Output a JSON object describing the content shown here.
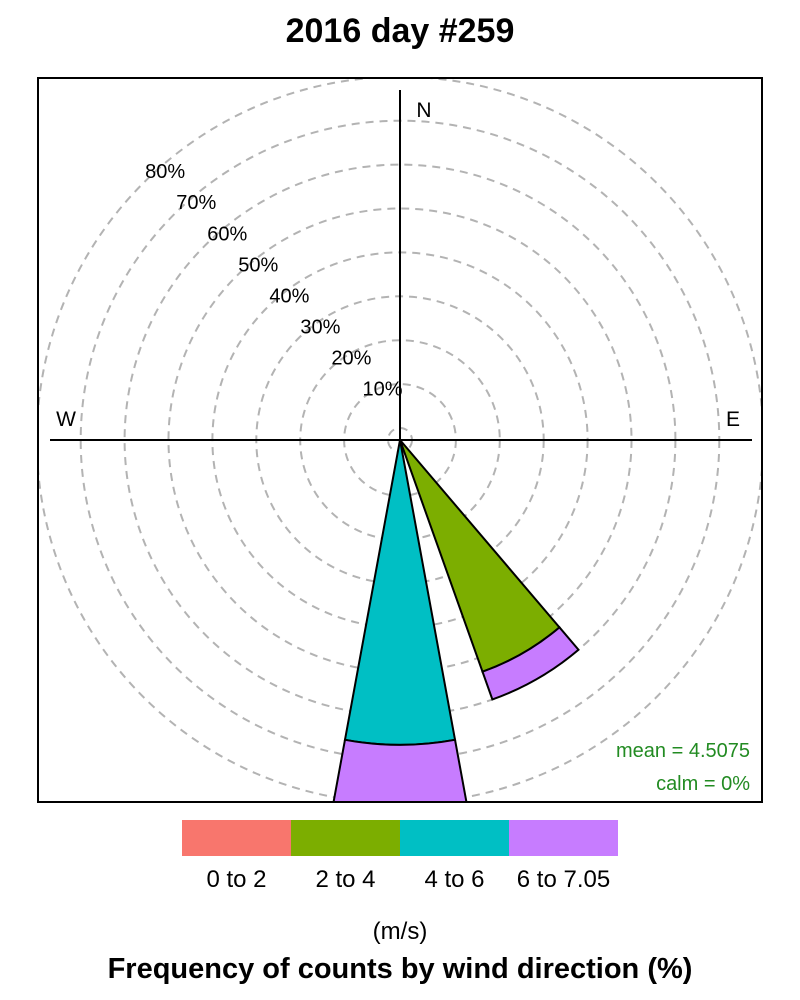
{
  "title": "2016 day #259",
  "directions": {
    "north": "N",
    "east": "E",
    "west": "W"
  },
  "chart_data": {
    "type": "windrose",
    "title": "2016 day #259",
    "rings": [
      "10%",
      "20%",
      "30%",
      "40%",
      "50%",
      "60%",
      "70%",
      "80%"
    ],
    "ring_max_percent": 80,
    "bins": [
      {
        "label": "0 to 2",
        "color": "#F8766D"
      },
      {
        "label": "2 to 4",
        "color": "#7CAE00"
      },
      {
        "label": "4 to 6",
        "color": "#00BFC4"
      },
      {
        "label": "6 to 7.05",
        "color": "#C77CFF"
      }
    ],
    "sectors": [
      {
        "direction_deg": 180,
        "cumulative_percent": [
          0,
          0,
          66.7,
          83.3
        ]
      },
      {
        "direction_deg": 150,
        "cumulative_percent": [
          0,
          0,
          0,
          0
        ]
      },
      {
        "direction_deg": 150,
        "cumulative_percent": [
          0,
          53.3,
          53.3,
          60.0
        ]
      }
    ],
    "units": "(m/s)",
    "footer": "Frequency of counts by wind direction (%)",
    "mean_label": "mean = 4.5075",
    "calm_label": "calm = 0%"
  }
}
